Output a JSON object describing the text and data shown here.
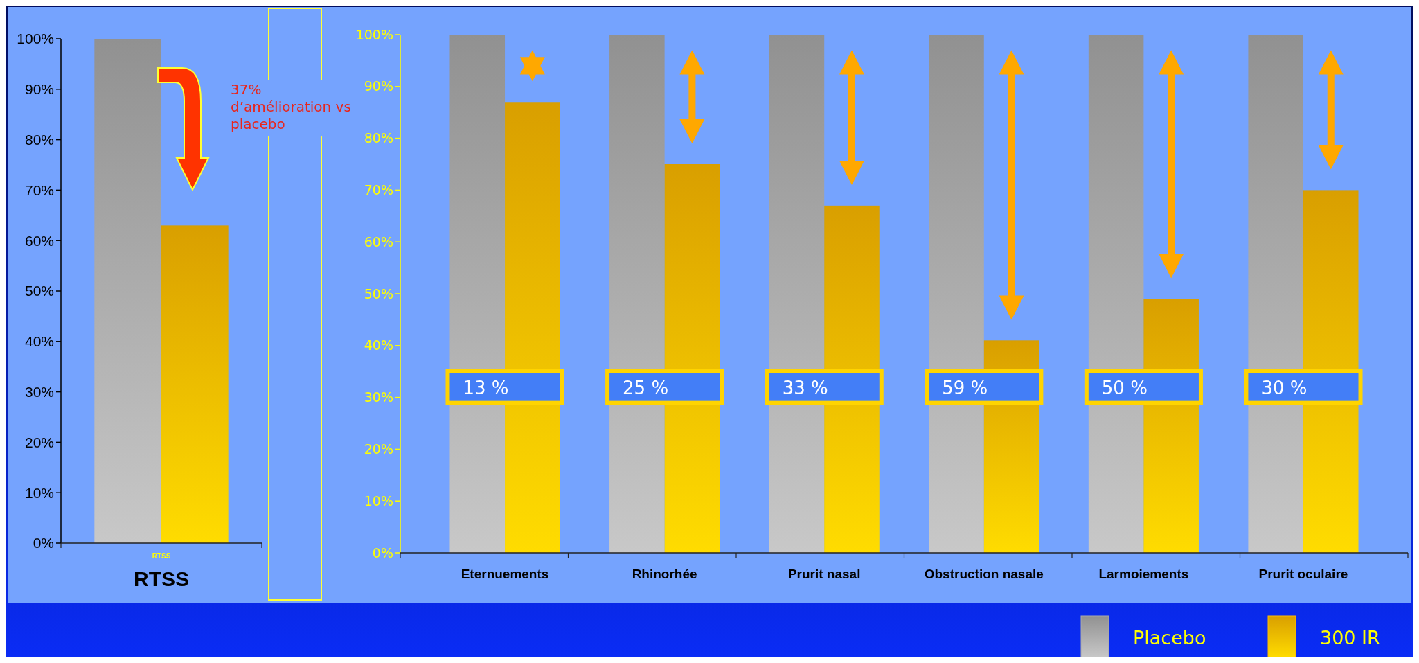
{
  "chart_data": [
    {
      "type": "bar",
      "categories": [
        "RTSS"
      ],
      "xlabel": "RTSS",
      "ylim": [
        0,
        100
      ],
      "yticks": [
        {
          "value": 0,
          "label": "0%"
        },
        {
          "value": 10,
          "label": "10%"
        },
        {
          "value": 20,
          "label": "20%"
        },
        {
          "value": 30,
          "label": "30%"
        },
        {
          "value": 40,
          "label": "40%"
        },
        {
          "value": 50,
          "label": "50%"
        },
        {
          "value": 60,
          "label": "60%"
        },
        {
          "value": 70,
          "label": "70%"
        },
        {
          "value": 80,
          "label": "80%"
        },
        {
          "value": 90,
          "label": "90%"
        },
        {
          "value": 100,
          "label": "100%"
        }
      ],
      "series": [
        {
          "color": "#aaaaaa",
          "values": [
            100
          ]
        },
        {
          "color": "#ffbb00",
          "values": [
            63
          ]
        }
      ],
      "annotations": [
        "37% d’amélioration vs placebo"
      ]
    },
    {
      "type": "bar",
      "categories": [
        "Eternuements",
        "Rhinorhée",
        "Prurit nasal",
        "Obstruction nasale",
        "Larmoiements",
        "Prurit oculaire"
      ],
      "ylim": [
        0,
        100
      ],
      "yticks": [
        {
          "value": 0,
          "label": "0%"
        },
        {
          "value": 10,
          "label": "10%"
        },
        {
          "value": 20,
          "label": "20%"
        },
        {
          "value": 30,
          "label": "30%"
        },
        {
          "value": 40,
          "label": "40%"
        },
        {
          "value": 50,
          "label": "50%"
        },
        {
          "value": 60,
          "label": "60%"
        },
        {
          "value": 70,
          "label": "70%"
        },
        {
          "value": 80,
          "label": "80%"
        },
        {
          "value": 90,
          "label": "90%"
        },
        {
          "value": 100,
          "label": "100%"
        }
      ],
      "series": [
        {
          "name": "Placebo",
          "color": "#aaaaaa",
          "values": [
            100,
            100,
            100,
            100,
            100,
            100
          ]
        },
        {
          "name": "300 IR",
          "color": "#ffbb00",
          "values": [
            87,
            75,
            67,
            41,
            49,
            70
          ]
        }
      ],
      "annotations": [
        {
          "text": "13 %",
          "x": "Eternuements",
          "y": 32
        },
        {
          "text": "25 %",
          "x": "Rhinorhée",
          "y": 32
        },
        {
          "text": "33 %",
          "x": "Prurit nasal",
          "y": 32
        },
        {
          "text": "59 %",
          "x": "Obstruction nasale",
          "y": 32
        },
        {
          "text": "50 %",
          "x": "Larmoiements",
          "y": 32
        },
        {
          "text": "30 %",
          "x": "Prurit oculaire",
          "y": 32
        }
      ],
      "legend": "bottom right"
    }
  ]
}
